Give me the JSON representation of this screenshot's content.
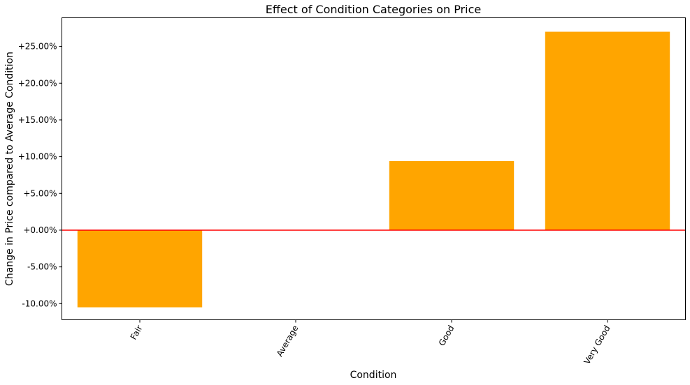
{
  "chart_data": {
    "type": "bar",
    "title": "Effect of Condition Categories on Price",
    "xlabel": "Condition",
    "ylabel": "Change in Price compared to Average Condition",
    "categories": [
      "Fair",
      "Average",
      "Good",
      "Very Good"
    ],
    "values": [
      -10.5,
      0.0,
      9.4,
      27.0
    ],
    "ylim": [
      -12.2,
      28.9
    ],
    "yticks": [
      -10,
      -5,
      0,
      5,
      10,
      15,
      20,
      25
    ],
    "ytick_labels": [
      "-10.00%",
      "-5.00%",
      "+0.00%",
      "+5.00%",
      "+10.00%",
      "+15.00%",
      "+20.00%",
      "+25.00%"
    ],
    "xtick_rotation": -60,
    "reference_line": {
      "y": 0,
      "color": "#ff0000"
    },
    "bar_color": "#ffa500",
    "grid": false,
    "legend": "none"
  }
}
